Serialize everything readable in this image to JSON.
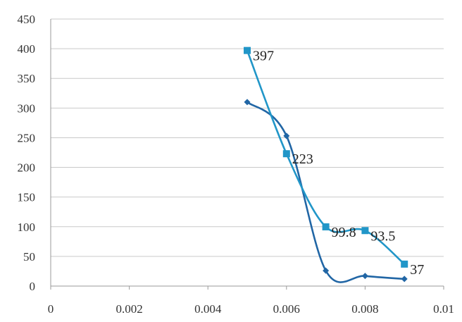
{
  "chart_data": {
    "type": "scatter",
    "title": "",
    "xlabel": "",
    "ylabel": "",
    "xlim": [
      0,
      0.01
    ],
    "ylim": [
      0,
      450
    ],
    "x_ticks": [
      "0",
      "0.002",
      "0.004",
      "0.006",
      "0.008",
      "0.01"
    ],
    "y_ticks": [
      "0",
      "50",
      "100",
      "150",
      "200",
      "250",
      "300",
      "350",
      "400",
      "450"
    ],
    "grid": "horizontal",
    "smooth_lines": true,
    "series": [
      {
        "color": "#2166a5",
        "marker": "diamond",
        "x": [
          0.005,
          0.006,
          0.007,
          0.008,
          0.009
        ],
        "y": [
          310,
          253,
          26,
          17,
          12
        ]
      },
      {
        "color": "#2196c8",
        "marker": "square",
        "x": [
          0.005,
          0.006,
          0.007,
          0.008,
          0.009
        ],
        "y": [
          397,
          223,
          99.8,
          93.5,
          37
        ],
        "labels": [
          "397",
          "223",
          "99.8",
          "93.5",
          "37"
        ]
      }
    ]
  }
}
